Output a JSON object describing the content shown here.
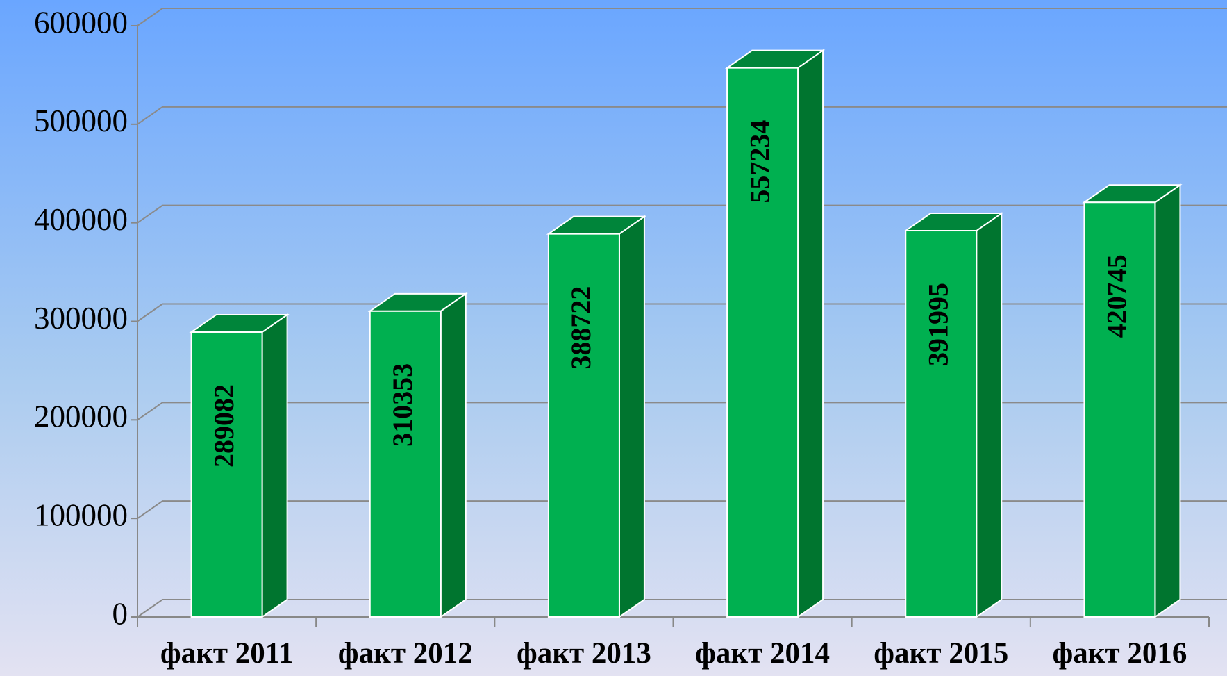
{
  "chart_data": {
    "type": "bar3d",
    "categories": [
      "факт 2011",
      "факт 2012",
      "факт 2013",
      "факт 2014",
      "факт 2015",
      "факт 2016"
    ],
    "values": [
      289082,
      310353,
      388722,
      557234,
      391995,
      420745
    ],
    "color": "#00b050",
    "side_color": "#00752f",
    "top_color": "#00853a",
    "ylim": [
      0,
      600000
    ],
    "yticks": [
      0,
      100000,
      200000,
      300000,
      400000,
      500000,
      600000
    ],
    "grid": true
  }
}
